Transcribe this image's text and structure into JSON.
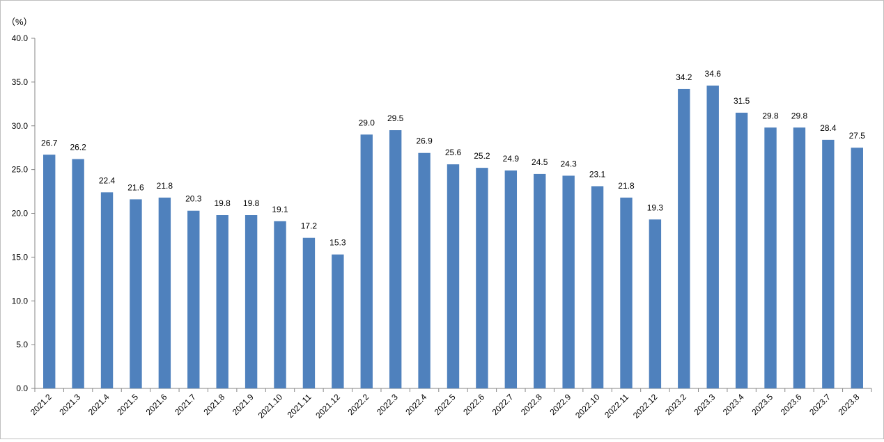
{
  "chart_data": {
    "type": "bar",
    "unit_label": "（%）",
    "categories": [
      "2021.2",
      "2021.3",
      "2021.4",
      "2021.5",
      "2021.6",
      "2021.7",
      "2021.8",
      "2021.9",
      "2021.10",
      "2021.11",
      "2021.12",
      "2022.2",
      "2022.3",
      "2022.4",
      "2022.5",
      "2022.6",
      "2022.7",
      "2022.8",
      "2022.9",
      "2022.10",
      "2022.11",
      "2022.12",
      "2023.2",
      "2023.3",
      "2023.4",
      "2023.5",
      "2023.6",
      "2023.7",
      "2023.8"
    ],
    "series": [
      {
        "values": [
          26.7,
          26.2,
          22.4,
          21.6,
          21.8,
          20.3,
          19.8,
          19.8,
          19.1,
          17.2,
          15.3,
          29.0,
          29.5,
          26.9,
          25.6,
          25.2,
          24.9,
          24.5,
          24.3,
          23.1,
          21.8,
          19.3,
          34.2,
          34.6,
          31.5,
          29.8,
          29.8,
          28.4,
          27.5
        ],
        "labels": [
          "26.7",
          "26.2",
          "22.4",
          "21.6",
          "21.8",
          "20.3",
          "19.8",
          "19.8",
          "19.1",
          "17.2",
          "15.3",
          "29.0",
          "29.5",
          "26.9",
          "25.6",
          "25.2",
          "24.9",
          "24.5",
          "24.3",
          "23.1",
          "21.8",
          "19.3",
          "34.2",
          "34.6",
          "31.5",
          "29.8",
          "29.8",
          "28.4",
          "27.5"
        ],
        "color": "#4f81bd"
      }
    ],
    "ylim": [
      0,
      40
    ],
    "yticks": [
      "0.0",
      "5.0",
      "10.0",
      "15.0",
      "20.0",
      "25.0",
      "30.0",
      "35.0",
      "40.0"
    ],
    "grid": false,
    "legend": "none"
  }
}
